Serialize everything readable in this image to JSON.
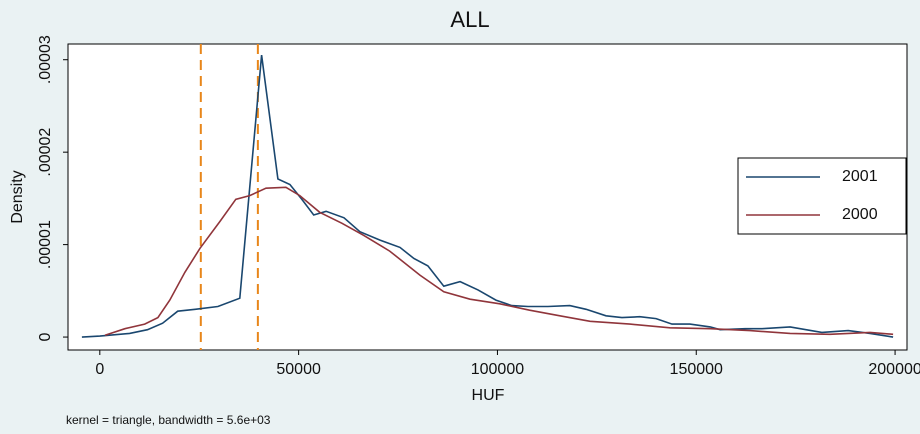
{
  "chart_data": {
    "type": "line",
    "title": "ALL",
    "x_label": "HUF",
    "y_label": "Density",
    "note": "kernel = triangle, bandwidth =  5.6e+03",
    "xlim": [
      -8000,
      203000
    ],
    "ylim": [
      -1.4e-06,
      3.17e-05
    ],
    "xticks": [
      0,
      50000,
      100000,
      150000,
      200000
    ],
    "yticks": [
      0,
      {
        "value": 1e-05,
        "label": ".00001"
      },
      {
        "value": 2e-05,
        "label": ".00002"
      },
      {
        "value": 3e-05,
        "label": ".00003"
      }
    ],
    "reference_lines": [
      25400,
      39750
    ],
    "reference_color": "#e8861a",
    "legend_position": "right",
    "series": [
      {
        "name": "2001",
        "color": "#1a476f",
        "x": [
          -4500,
          0,
          7500,
          12000,
          15800,
          19600,
          24000,
          29700,
          35200,
          40700,
          44800,
          47800,
          50800,
          53800,
          56900,
          61400,
          65400,
          70400,
          75500,
          79000,
          82500,
          86500,
          90600,
          95100,
          99600,
          103600,
          107700,
          112700,
          118200,
          122300,
          127300,
          131300,
          135800,
          139900,
          143900,
          148400,
          153500,
          156000,
          162300,
          166500,
          173600,
          181600,
          188200,
          193700,
          199500
        ],
        "values": [
          0,
          1e-07,
          4e-07,
          8e-07,
          1.5e-06,
          2.8e-06,
          3e-06,
          3.3e-06,
          4.2e-06,
          3.05e-05,
          1.71e-05,
          1.65e-05,
          1.49e-05,
          1.32e-05,
          1.36e-05,
          1.29e-05,
          1.14e-05,
          1.05e-05,
          9.7e-06,
          8.5e-06,
          7.7e-06,
          5.5e-06,
          6e-06,
          5.1e-06,
          4e-06,
          3.4e-06,
          3.3e-06,
          3.3e-06,
          3.4e-06,
          3e-06,
          2.3e-06,
          2.1e-06,
          2.2e-06,
          2e-06,
          1.4e-06,
          1.4e-06,
          1.1e-06,
          8e-07,
          9e-07,
          9e-07,
          1.1e-06,
          5e-07,
          7e-07,
          4e-07,
          0
        ]
      },
      {
        "name": "2000",
        "color": "#90353b",
        "x": [
          1300,
          6300,
          11300,
          14600,
          17600,
          21400,
          25200,
          30200,
          34200,
          37700,
          41800,
          46800,
          50300,
          55300,
          60900,
          66400,
          72900,
          80500,
          86500,
          93100,
          100600,
          108100,
          115700,
          123300,
          133300,
          143400,
          153500,
          163500,
          173600,
          183600,
          193700,
          199500
        ],
        "values": [
          2e-07,
          9e-07,
          1.4e-06,
          2.1e-06,
          4e-06,
          7e-06,
          9.6e-06,
          1.25e-05,
          1.49e-05,
          1.53e-05,
          1.61e-05,
          1.62e-05,
          1.53e-05,
          1.35e-05,
          1.23e-05,
          1.1e-05,
          9.3e-06,
          6.7e-06,
          4.9e-06,
          4.1e-06,
          3.6e-06,
          2.9e-06,
          2.3e-06,
          1.7e-06,
          1.4e-06,
          1e-06,
          9e-07,
          7e-07,
          4e-07,
          3e-07,
          5e-07,
          3e-07
        ]
      }
    ]
  }
}
